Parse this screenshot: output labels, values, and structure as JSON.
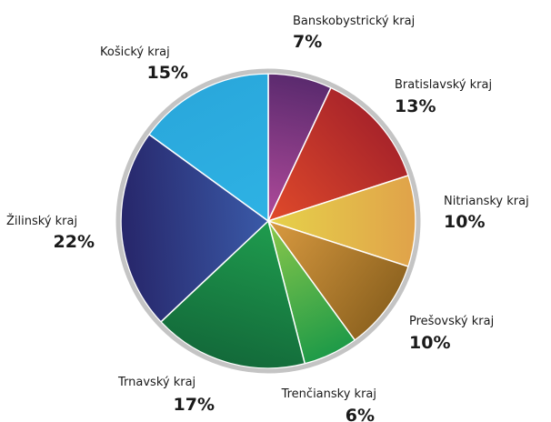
{
  "chart_data": {
    "type": "pie",
    "title": "",
    "slices": [
      {
        "label": "Banskobystrický kraj",
        "value": 7,
        "display": "7%",
        "color_light": "#b04a9a",
        "color_dark": "#5a2a6e"
      },
      {
        "label": "Bratislavský kraj",
        "value": 13,
        "display": "13%",
        "color_light": "#e04a2a",
        "color_dark": "#a8242a"
      },
      {
        "label": "Nitriansky kraj",
        "value": 10,
        "display": "10%",
        "color_light": "#e6d24a",
        "color_dark": "#e0a24a"
      },
      {
        "label": "Prešovský kraj",
        "value": 10,
        "display": "10%",
        "color_light": "#d99a40",
        "color_dark": "#8f6420"
      },
      {
        "label": "Trenčiansky kraj",
        "value": 6,
        "display": "6%",
        "color_light": "#8cc84a",
        "color_dark": "#1e9a48"
      },
      {
        "label": "Trnavský kraj",
        "value": 17,
        "display": "17%",
        "color_light": "#1f9c4e",
        "color_dark": "#136a3a"
      },
      {
        "label": "Žilinský kraj",
        "value": 22,
        "display": "22%",
        "color_light": "#3a5aa8",
        "color_dark": "#27266a"
      },
      {
        "label": "Košický kraj",
        "value": 15,
        "display": "15%",
        "color_light": "#2eb2e4",
        "color_dark": "#2aa8dc"
      }
    ]
  }
}
